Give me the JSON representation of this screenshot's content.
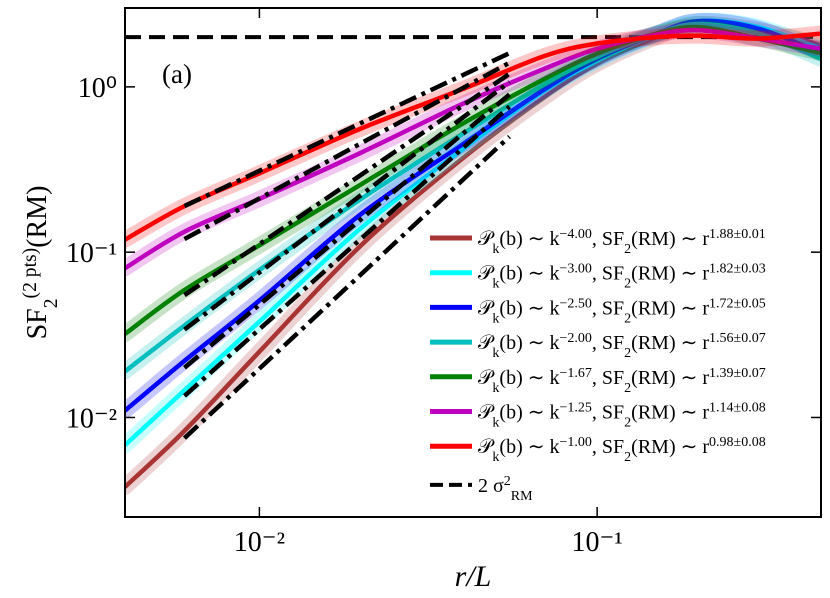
{
  "chart_data": {
    "type": "line",
    "annotation": "(a)",
    "x_label": [
      {
        "text": "r/L"
      }
    ],
    "y_label": [
      {
        "text": "SF"
      },
      {
        "text": "2",
        "pos": "sub"
      },
      {
        "text": "(2 pts)",
        "pos": "sup"
      },
      {
        "text": "(RM)"
      }
    ],
    "log_x": true,
    "log_y": true,
    "xlim": [
      0.004,
      0.46
    ],
    "ylim": [
      0.0025,
      3
    ],
    "xticks": [
      {
        "value": 0.01,
        "label": "10⁻²"
      },
      {
        "value": 0.1,
        "label": "10⁻¹"
      }
    ],
    "yticks": [
      {
        "value": 0.01,
        "label": "10⁻²"
      },
      {
        "value": 0.1,
        "label": "10⁻¹"
      },
      {
        "value": 1,
        "label": "10⁰"
      }
    ],
    "x": [
      0.004,
      0.006,
      0.01,
      0.02,
      0.04,
      0.07,
      0.1,
      0.15,
      0.2,
      0.3,
      0.46
    ],
    "series": [
      {
        "name": [
          {
            "text": "𝒫"
          },
          {
            "text": "k",
            "pos": "sub"
          },
          {
            "text": "(b) ∼ k"
          },
          {
            "text": "−4.00",
            "pos": "sup"
          },
          {
            "text": ", SF"
          },
          {
            "text": "2",
            "pos": "sub"
          },
          {
            "text": "(RM) ∼ r"
          },
          {
            "text": "1.88±0.01",
            "pos": "sup"
          }
        ],
        "color": "#a83434",
        "values": [
          0.0038,
          0.0083,
          0.025,
          0.11,
          0.37,
          0.87,
          1.38,
          2.0,
          2.4,
          2.2,
          1.8
        ]
      },
      {
        "name": [
          {
            "text": "𝒫"
          },
          {
            "text": "k",
            "pos": "sub"
          },
          {
            "text": "(b) ∼ k"
          },
          {
            "text": "−3.00",
            "pos": "sup"
          },
          {
            "text": ", SF"
          },
          {
            "text": "2",
            "pos": "sub"
          },
          {
            "text": "(RM) ∼ r"
          },
          {
            "text": "1.82±0.03",
            "pos": "sup"
          }
        ],
        "color": "#00ffff",
        "values": [
          0.0068,
          0.0146,
          0.038,
          0.14,
          0.42,
          0.95,
          1.44,
          2.07,
          2.5,
          2.3,
          1.7
        ]
      },
      {
        "name": [
          {
            "text": "𝒫"
          },
          {
            "text": "k",
            "pos": "sub"
          },
          {
            "text": "(b) ∼ k"
          },
          {
            "text": "−2.50",
            "pos": "sup"
          },
          {
            "text": ", SF"
          },
          {
            "text": "2",
            "pos": "sub"
          },
          {
            "text": "(RM) ∼ r"
          },
          {
            "text": "1.72±0.05",
            "pos": "sup"
          }
        ],
        "color": "#0000ff",
        "values": [
          0.011,
          0.022,
          0.051,
          0.17,
          0.45,
          0.97,
          1.48,
          2.1,
          2.5,
          2.25,
          1.6
        ]
      },
      {
        "name": [
          {
            "text": "𝒫"
          },
          {
            "text": "k",
            "pos": "sub"
          },
          {
            "text": "(b) ∼ k"
          },
          {
            "text": "−2.00",
            "pos": "sup"
          },
          {
            "text": ", SF"
          },
          {
            "text": "2",
            "pos": "sub"
          },
          {
            "text": "(RM) ∼ r"
          },
          {
            "text": "1.56±0.07",
            "pos": "sup"
          }
        ],
        "color": "#00bfbf",
        "values": [
          0.019,
          0.036,
          0.078,
          0.21,
          0.52,
          1.04,
          1.52,
          2.1,
          2.4,
          2.1,
          1.48
        ]
      },
      {
        "name": [
          {
            "text": "𝒫"
          },
          {
            "text": "k",
            "pos": "sub"
          },
          {
            "text": "(b) ∼ k"
          },
          {
            "text": "−1.67",
            "pos": "sup"
          },
          {
            "text": ", SF"
          },
          {
            "text": "2",
            "pos": "sub"
          },
          {
            "text": "(RM) ∼ r"
          },
          {
            "text": "1.39±0.07",
            "pos": "sup"
          }
        ],
        "color": "#008000",
        "values": [
          0.032,
          0.059,
          0.11,
          0.257,
          0.6,
          1.12,
          1.59,
          2.1,
          2.3,
          1.96,
          1.6
        ]
      },
      {
        "name": [
          {
            "text": "𝒫"
          },
          {
            "text": "k",
            "pos": "sub"
          },
          {
            "text": "(b) ∼ k"
          },
          {
            "text": "−1.25",
            "pos": "sup"
          },
          {
            "text": ", SF"
          },
          {
            "text": "2",
            "pos": "sub"
          },
          {
            "text": "(RM) ∼ r"
          },
          {
            "text": "1.14±0.08",
            "pos": "sup"
          }
        ],
        "color": "#bf00bf",
        "values": [
          0.08,
          0.133,
          0.21,
          0.4,
          0.79,
          1.29,
          1.7,
          2.07,
          2.2,
          1.96,
          1.7
        ]
      },
      {
        "name": [
          {
            "text": "𝒫"
          },
          {
            "text": "k",
            "pos": "sub"
          },
          {
            "text": "(b) ∼ k"
          },
          {
            "text": "−1.00",
            "pos": "sup"
          },
          {
            "text": ", SF"
          },
          {
            "text": "2",
            "pos": "sub"
          },
          {
            "text": "(RM) ∼ r"
          },
          {
            "text": "0.98±0.08",
            "pos": "sup"
          }
        ],
        "color": "#ff0000",
        "values": [
          0.119,
          0.19,
          0.3,
          0.56,
          0.97,
          1.54,
          1.83,
          2.0,
          2.04,
          1.96,
          2.1
        ]
      }
    ],
    "fit_lines": [
      {
        "x": [
          0.006,
          0.055
        ],
        "values": [
          0.0075,
          0.5
        ]
      },
      {
        "x": [
          0.006,
          0.055
        ],
        "values": [
          0.0135,
          0.76
        ]
      },
      {
        "x": [
          0.006,
          0.055
        ],
        "values": [
          0.02,
          0.9
        ]
      },
      {
        "x": [
          0.006,
          0.055
        ],
        "values": [
          0.034,
          1.07
        ]
      },
      {
        "x": [
          0.006,
          0.055
        ],
        "values": [
          0.055,
          1.2
        ]
      },
      {
        "x": [
          0.006,
          0.055
        ],
        "values": [
          0.12,
          1.4
        ]
      },
      {
        "x": [
          0.006,
          0.055
        ],
        "values": [
          0.19,
          1.6
        ]
      }
    ],
    "reference_line": {
      "value": 2,
      "color": "#000000",
      "name": [
        {
          "text": "2 σ"
        },
        {
          "text": "2",
          "pos": "sup"
        },
        {
          "text": "RM",
          "pos": "sub"
        }
      ]
    }
  }
}
